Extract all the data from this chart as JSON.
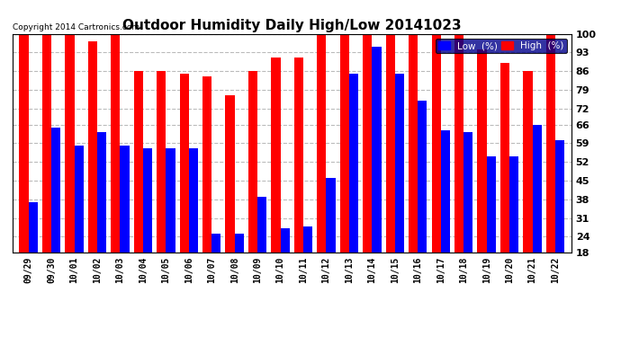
{
  "title": "Outdoor Humidity Daily High/Low 20141023",
  "copyright": "Copyright 2014 Cartronics.com",
  "dates": [
    "09/29",
    "09/30",
    "10/01",
    "10/02",
    "10/03",
    "10/04",
    "10/05",
    "10/06",
    "10/07",
    "10/08",
    "10/09",
    "10/10",
    "10/11",
    "10/12",
    "10/13",
    "10/14",
    "10/15",
    "10/16",
    "10/17",
    "10/18",
    "10/19",
    "10/20",
    "10/21",
    "10/22"
  ],
  "high": [
    100,
    100,
    100,
    97,
    100,
    86,
    86,
    85,
    84,
    77,
    86,
    91,
    91,
    100,
    100,
    100,
    100,
    100,
    100,
    100,
    94,
    89,
    86,
    100
  ],
  "low": [
    37,
    65,
    58,
    63,
    58,
    57,
    57,
    57,
    25,
    25,
    39,
    27,
    28,
    46,
    85,
    95,
    85,
    75,
    64,
    63,
    54,
    54,
    66,
    60
  ],
  "ylim": [
    18,
    100
  ],
  "yticks": [
    18,
    24,
    31,
    38,
    45,
    52,
    59,
    66,
    72,
    79,
    86,
    93,
    100
  ],
  "bar_width": 0.4,
  "high_color": "#ff0000",
  "low_color": "#0000ff",
  "bg_color": "#ffffff",
  "grid_color": "#bbbbbb",
  "title_fontsize": 11,
  "legend_low_label": "Low  (%)",
  "legend_high_label": "High  (%)"
}
